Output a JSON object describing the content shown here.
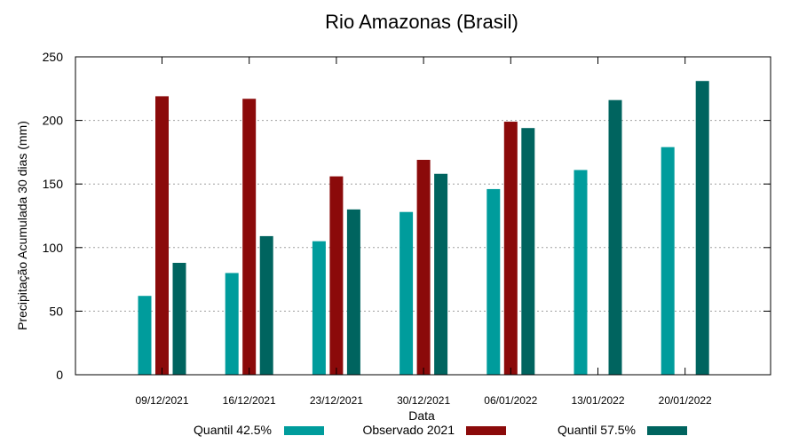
{
  "chart_data": {
    "type": "bar",
    "title": "Rio Amazonas (Brasil)",
    "xlabel": "Data",
    "ylabel": "Precipitação Acumulada 30 dias (mm)",
    "ylim": [
      0,
      250
    ],
    "yticks": [
      0,
      50,
      100,
      150,
      200,
      250
    ],
    "grid": true,
    "legend_position": "bottom",
    "categories": [
      "09/12/2021",
      "16/12/2021",
      "23/12/2021",
      "30/12/2021",
      "06/01/2022",
      "13/01/2022",
      "20/01/2022"
    ],
    "series": [
      {
        "name": "Quantil 42.5%",
        "color": "#009c9c",
        "values": [
          62,
          80,
          105,
          128,
          146,
          161,
          179
        ]
      },
      {
        "name": "Observado 2021",
        "color": "#8b0a0a",
        "values": [
          219,
          217,
          156,
          169,
          199,
          null,
          null
        ]
      },
      {
        "name": "Quantil 57.5%",
        "color": "#00645f",
        "values": [
          88,
          109,
          130,
          158,
          194,
          216,
          231
        ]
      }
    ]
  }
}
